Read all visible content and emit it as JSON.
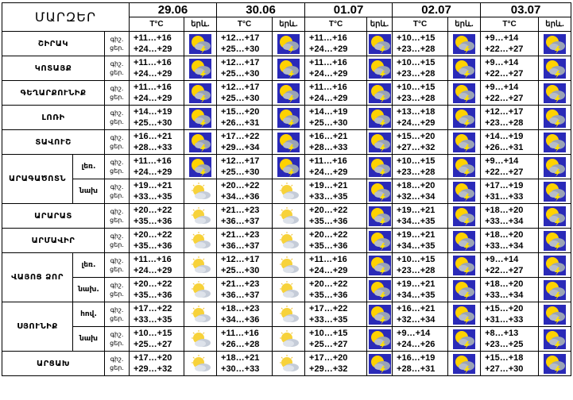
{
  "header": {
    "title": "ՄԱՐԶԵՐ",
    "dates": [
      "29.06",
      "30.06",
      "01.07",
      "02.07",
      "03.07"
    ],
    "temp_label": "T°C",
    "weather_label": "երև."
  },
  "day_night": {
    "night": "գիշ.",
    "day": "ցեր."
  },
  "rows": [
    {
      "region": "ՇԻՐԱԿ",
      "sub": "",
      "days": [
        {
          "n": "+11…+16",
          "d": "+24…+29",
          "icon": "storm-icon"
        },
        {
          "n": "+12…+17",
          "d": "+25…+30",
          "icon": "storm-icon"
        },
        {
          "n": "+11…+16",
          "d": "+24…+29",
          "icon": "storm-icon"
        },
        {
          "n": "+10…+15",
          "d": "+23…+28",
          "icon": "storm-icon"
        },
        {
          "n": "+9…+14",
          "d": "+22…+27",
          "icon": "storm-icon"
        }
      ]
    },
    {
      "region": "ԿՈՏԱՅՔ",
      "sub": "",
      "days": [
        {
          "n": "+11…+16",
          "d": "+24…+29",
          "icon": "storm-icon"
        },
        {
          "n": "+12…+17",
          "d": "+25…+30",
          "icon": "storm-icon"
        },
        {
          "n": "+11…+16",
          "d": "+24…+29",
          "icon": "storm-icon"
        },
        {
          "n": "+10…+15",
          "d": "+23…+28",
          "icon": "storm-icon"
        },
        {
          "n": "+9…+14",
          "d": "+22…+27",
          "icon": "storm-icon"
        }
      ]
    },
    {
      "region": "ԳԵՂԱՐՔՈՒՆԻՔ",
      "sub": "",
      "days": [
        {
          "n": "+11…+16",
          "d": "+24…+29",
          "icon": "storm-icon"
        },
        {
          "n": "+12…+17",
          "d": "+25…+30",
          "icon": "storm-icon"
        },
        {
          "n": "+11…+16",
          "d": "+24…+29",
          "icon": "storm-icon"
        },
        {
          "n": "+10…+15",
          "d": "+23…+28",
          "icon": "storm-icon"
        },
        {
          "n": "+9…+14",
          "d": "+22…+27",
          "icon": "storm-icon"
        }
      ]
    },
    {
      "region": "ԼՈՌԻ",
      "sub": "",
      "days": [
        {
          "n": "+14…+19",
          "d": "+25…+30",
          "icon": "storm-icon"
        },
        {
          "n": "+15…+20",
          "d": "+26…+31",
          "icon": "storm-icon"
        },
        {
          "n": "+14…+19",
          "d": "+25…+30",
          "icon": "storm-icon"
        },
        {
          "n": "+13…+18",
          "d": "+24…+29",
          "icon": "storm-icon"
        },
        {
          "n": "+12…+17",
          "d": "+23…+28",
          "icon": "storm-icon"
        }
      ]
    },
    {
      "region": "ՏԱՎՈՒՇ",
      "sub": "",
      "days": [
        {
          "n": "+16…+21",
          "d": "+28…+33",
          "icon": "storm-icon"
        },
        {
          "n": "+17…+22",
          "d": "+29…+34",
          "icon": "storm-icon"
        },
        {
          "n": "+16…+21",
          "d": "+28…+33",
          "icon": "storm-icon"
        },
        {
          "n": "+15…+20",
          "d": "+27…+32",
          "icon": "storm-icon"
        },
        {
          "n": "+14…+19",
          "d": "+26…+31",
          "icon": "storm-icon"
        }
      ]
    },
    {
      "region": "ԱՐԱԳԱԾՈՏՆ",
      "sub": "լեռ.",
      "days": [
        {
          "n": "+11…+16",
          "d": "+24…+29",
          "icon": "storm-icon"
        },
        {
          "n": "+12…+17",
          "d": "+25…+30",
          "icon": "storm-icon"
        },
        {
          "n": "+11…+16",
          "d": "+24…+29",
          "icon": "storm-icon"
        },
        {
          "n": "+10…+15",
          "d": "+23…+28",
          "icon": "storm-icon"
        },
        {
          "n": "+9…+14",
          "d": "+22…+27",
          "icon": "storm-icon"
        }
      ]
    },
    {
      "region": "",
      "sub": "նախ",
      "days": [
        {
          "n": "+19…+21",
          "d": "+33…+35",
          "icon": "partly-cloudy-icon"
        },
        {
          "n": "+20…+22",
          "d": "+34…+36",
          "icon": "partly-cloudy-icon"
        },
        {
          "n": "+19…+21",
          "d": "+33…+35",
          "icon": "storm-icon"
        },
        {
          "n": "+18…+20",
          "d": "+32…+34",
          "icon": "storm-icon"
        },
        {
          "n": "+17…+19",
          "d": "+31…+33",
          "icon": "storm-icon"
        }
      ]
    },
    {
      "region": "ԱՐԱՐԱՏ",
      "sub": "",
      "days": [
        {
          "n": "+20…+22",
          "d": "+35…+36",
          "icon": "partly-cloudy-icon"
        },
        {
          "n": "+21…+23",
          "d": "+36…+37",
          "icon": "partly-cloudy-icon"
        },
        {
          "n": "+20…+22",
          "d": "+35…+36",
          "icon": "storm-icon"
        },
        {
          "n": "+19…+21",
          "d": "+34…+35",
          "icon": "storm-icon"
        },
        {
          "n": "+18…+20",
          "d": "+33…+34",
          "icon": "storm-icon"
        }
      ]
    },
    {
      "region": "ԱՐՄԱՎԻՐ",
      "sub": "",
      "days": [
        {
          "n": "+20…+22",
          "d": "+35…+36",
          "icon": "partly-cloudy-icon"
        },
        {
          "n": "+21…+23",
          "d": "+36…+37",
          "icon": "partly-cloudy-icon"
        },
        {
          "n": "+20…+22",
          "d": "+35…+36",
          "icon": "storm-icon"
        },
        {
          "n": "+19…+21",
          "d": "+34…+35",
          "icon": "storm-icon"
        },
        {
          "n": "+18…+20",
          "d": "+33…+34",
          "icon": "storm-icon"
        }
      ]
    },
    {
      "region": "ՎԱՅՈՑ ՁՈՐ",
      "sub": "լեռ.",
      "days": [
        {
          "n": "+11…+16",
          "d": "+24…+29",
          "icon": "partly-cloudy-icon"
        },
        {
          "n": "+12…+17",
          "d": "+25…+30",
          "icon": "partly-cloudy-icon"
        },
        {
          "n": "+11…+16",
          "d": "+24…+29",
          "icon": "storm-icon"
        },
        {
          "n": "+10…+15",
          "d": "+23…+28",
          "icon": "storm-icon"
        },
        {
          "n": "+9…+14",
          "d": "+22…+27",
          "icon": "storm-icon"
        }
      ]
    },
    {
      "region": "",
      "sub": "նախ.",
      "days": [
        {
          "n": "+20…+22",
          "d": "+35…+36",
          "icon": "partly-cloudy-icon"
        },
        {
          "n": "+21…+23",
          "d": "+36…+37",
          "icon": "partly-cloudy-icon"
        },
        {
          "n": "+20…+22",
          "d": "+35…+36",
          "icon": "storm-icon"
        },
        {
          "n": "+19…+21",
          "d": "+34…+35",
          "icon": "storm-icon"
        },
        {
          "n": "+18…+20",
          "d": "+33…+34",
          "icon": "storm-icon"
        }
      ]
    },
    {
      "region": "ՍՅՈՒՆԻՔ",
      "sub": "հով.",
      "days": [
        {
          "n": "+17…+22",
          "d": "+33…+35",
          "icon": "partly-cloudy-icon"
        },
        {
          "n": "+18…+23",
          "d": "+34…+36",
          "icon": "partly-cloudy-icon"
        },
        {
          "n": "+17…+22",
          "d": "+33…+35",
          "icon": "storm-icon"
        },
        {
          "n": "+16…+21",
          "d": "+32…+34",
          "icon": "storm-icon"
        },
        {
          "n": "+15…+20",
          "d": "+31…+33",
          "icon": "storm-icon"
        }
      ]
    },
    {
      "region": "",
      "sub": "նախ",
      "days": [
        {
          "n": "+10…+15",
          "d": "+25…+27",
          "icon": "partly-cloudy-icon"
        },
        {
          "n": "+11…+16",
          "d": "+26…+28",
          "icon": "partly-cloudy-icon"
        },
        {
          "n": "+10…+15",
          "d": "+25…+27",
          "icon": "storm-icon"
        },
        {
          "n": "+9…+14",
          "d": "+24…+26",
          "icon": "storm-icon"
        },
        {
          "n": "+8…+13",
          "d": "+23…+25",
          "icon": "storm-icon"
        }
      ]
    },
    {
      "region": "ԱՐՑԱԽ",
      "sub": "",
      "days": [
        {
          "n": "+17…+20",
          "d": "+29…+32",
          "icon": "partly-cloudy-icon"
        },
        {
          "n": "+18…+21",
          "d": "+30…+33",
          "icon": "partly-cloudy-icon"
        },
        {
          "n": "+17…+20",
          "d": "+29…+32",
          "icon": "storm-icon"
        },
        {
          "n": "+16…+19",
          "d": "+28…+31",
          "icon": "storm-icon"
        },
        {
          "n": "+15…+18",
          "d": "+27…+30",
          "icon": "storm-icon"
        }
      ]
    }
  ]
}
